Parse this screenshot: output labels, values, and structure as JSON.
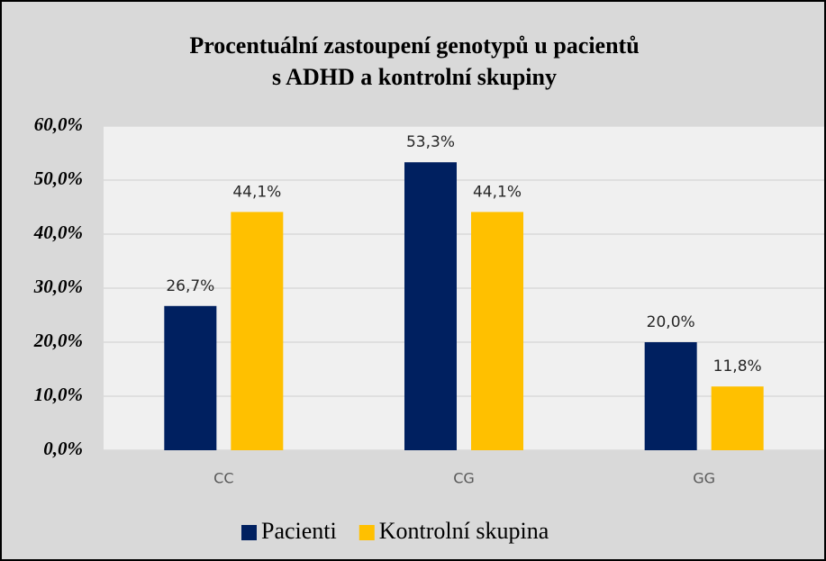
{
  "chart_data": {
    "type": "bar",
    "title": [
      "Procentuální zastoupení genotypů u pacientů",
      "s ADHD a kontrolní skupiny"
    ],
    "categories": [
      "CC",
      "CG",
      "GG"
    ],
    "series": [
      {
        "name": "Pacienti",
        "color": "#002060",
        "values": [
          26.7,
          53.3,
          20.0
        ],
        "value_labels": [
          "26,7%",
          "53,3%",
          "20,0%"
        ]
      },
      {
        "name": "Kontrolní skupina",
        "color": "#ffc000",
        "values": [
          44.1,
          44.1,
          11.8
        ],
        "value_labels": [
          "44,1%",
          "44,1%",
          "11,8%"
        ]
      }
    ],
    "ylim": [
      0,
      60
    ],
    "yticks": [
      {
        "value": 0,
        "label": "0,0%"
      },
      {
        "value": 10,
        "label": "10,0%"
      },
      {
        "value": 20,
        "label": "20,0%"
      },
      {
        "value": 30,
        "label": "30,0%"
      },
      {
        "value": 40,
        "label": "40,0%"
      },
      {
        "value": 50,
        "label": "50,0%"
      },
      {
        "value": 60,
        "label": "60,0%"
      }
    ],
    "grid": true,
    "legend": "bottom"
  }
}
